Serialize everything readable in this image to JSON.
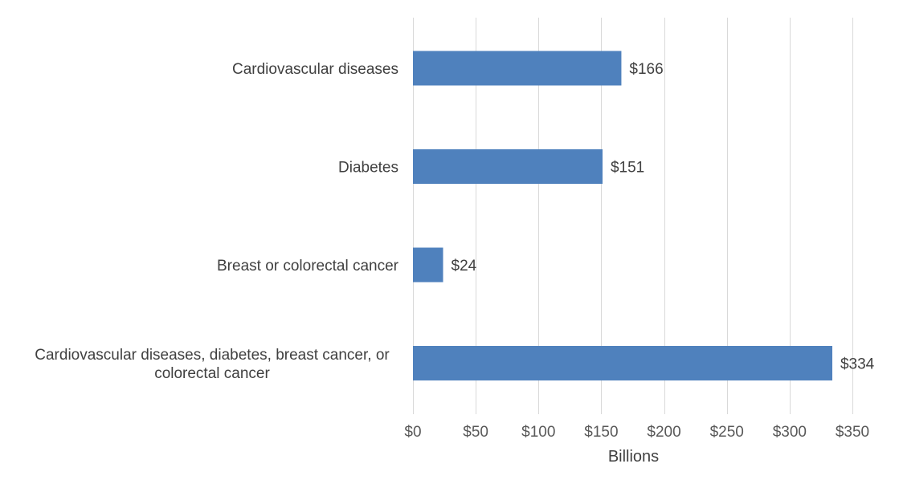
{
  "chart_data": {
    "type": "bar",
    "orientation": "horizontal",
    "categories": [
      "Cardiovascular diseases",
      "Diabetes",
      "Breast or colorectal cancer",
      "Cardiovascular diseases, diabetes, breast cancer, or colorectal cancer"
    ],
    "category_lines": [
      [
        "Cardiovascular diseases"
      ],
      [
        "Diabetes"
      ],
      [
        "Breast or colorectal cancer"
      ],
      [
        "Cardiovascular diseases, diabetes, breast cancer, or",
        "colorectal cancer"
      ]
    ],
    "values": [
      166,
      151,
      24,
      334
    ],
    "data_labels": [
      "$166",
      "$151",
      "$24",
      "$334"
    ],
    "xlim": [
      0,
      350
    ],
    "xticks": [
      0,
      50,
      100,
      150,
      200,
      250,
      300,
      350
    ],
    "xtick_labels": [
      "$0",
      "$50",
      "$100",
      "$150",
      "$200",
      "$250",
      "$300",
      "$350"
    ],
    "xlabel": "Billions",
    "ylabel": "",
    "title": "",
    "grid": "vertical",
    "legend": "none",
    "colors": {
      "bar": "#4f81bd",
      "grid": "#d9d9d9",
      "text": "#404040",
      "tick_text": "#595959"
    }
  }
}
